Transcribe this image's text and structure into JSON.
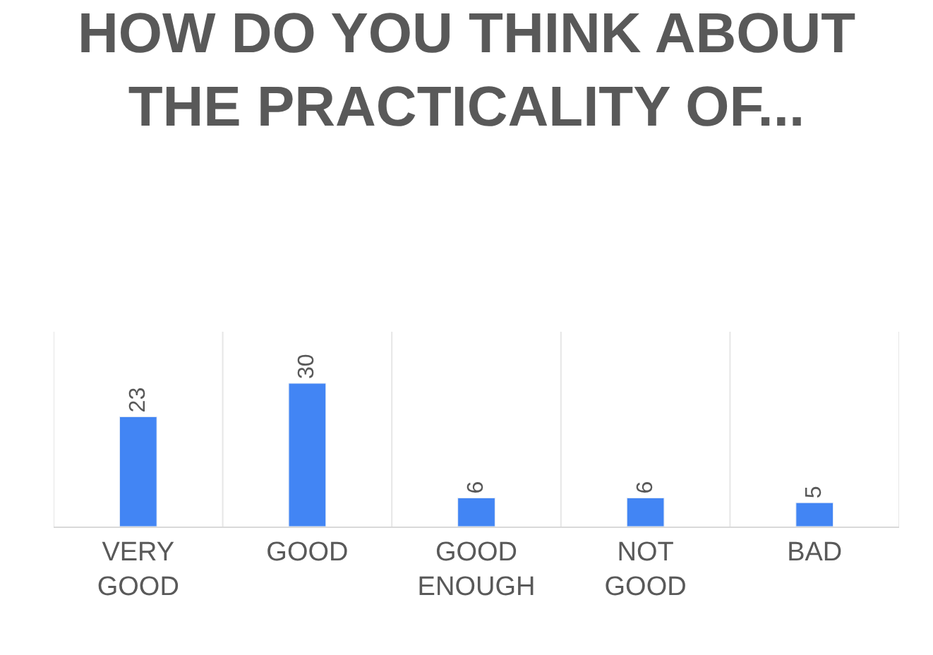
{
  "chart_data": {
    "type": "bar",
    "title": "HOW DO YOU THINK ABOUT THE PRACTICALITY OF...",
    "categories": [
      "VERY GOOD",
      "GOOD",
      "GOOD ENOUGH",
      "NOT GOOD",
      "BAD"
    ],
    "values": [
      23,
      30,
      6,
      6,
      5
    ],
    "color": "#4285f4",
    "data_labels": true,
    "grid": "x"
  }
}
